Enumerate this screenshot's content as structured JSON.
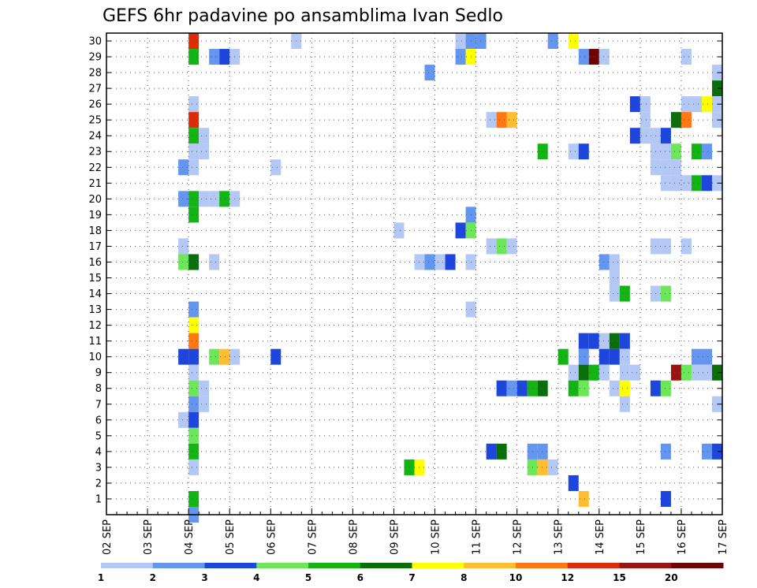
{
  "chart_data": {
    "type": "heatmap",
    "title": "GEFS 6hr padavine po ansamblima Ivan Sedlo",
    "x_tick_labels": [
      "02 SEP",
      "03 SEP",
      "04 SEP",
      "05 SEP",
      "06 SEP",
      "07 SEP",
      "08 SEP",
      "09 SEP",
      "10 SEP",
      "11 SEP",
      "12 SEP",
      "13 SEP",
      "14 SEP",
      "15 SEP",
      "16 SEP",
      "17 SEP"
    ],
    "y_tick_labels": [
      "1",
      "2",
      "3",
      "4",
      "5",
      "6",
      "7",
      "8",
      "9",
      "10",
      "11",
      "12",
      "13",
      "14",
      "15",
      "16",
      "17",
      "18",
      "19",
      "20",
      "21",
      "22",
      "23",
      "24",
      "25",
      "26",
      "27",
      "28",
      "29",
      "30"
    ],
    "xlim_days": [
      0,
      15
    ],
    "ylim_members": [
      0,
      30
    ],
    "grid": true,
    "colorbar": {
      "tick_labels": [
        "1",
        "2",
        "3",
        "4",
        "5",
        "6",
        "7",
        "8",
        "10",
        "12",
        "15",
        "20"
      ],
      "colors": [
        "#b4c8f5",
        "#6496ef",
        "#1e46dc",
        "#6ee65a",
        "#14b414",
        "#0a6e0a",
        "#ffff00",
        "#ffbe32",
        "#ff7814",
        "#dc2d0a",
        "#9b1414",
        "#6e0505"
      ]
    },
    "cells_note": "each cell: [x_step (6-hour step index, 0 = 02 SEP 00Z), member, color_class (0-11 index into colorbar.colors)]",
    "cells": [
      [
        8,
        30,
        9
      ],
      [
        36,
        30,
        1
      ],
      [
        43,
        30,
        1
      ],
      [
        45,
        30,
        6
      ],
      [
        18,
        30,
        0
      ],
      [
        34,
        30,
        0
      ],
      [
        35,
        30,
        1
      ],
      [
        8,
        29,
        4
      ],
      [
        10,
        29,
        1
      ],
      [
        11,
        29,
        2
      ],
      [
        12,
        29,
        0
      ],
      [
        34,
        29,
        1
      ],
      [
        35,
        29,
        6
      ],
      [
        46,
        29,
        1
      ],
      [
        47,
        29,
        11
      ],
      [
        48,
        29,
        0
      ],
      [
        56,
        29,
        0
      ],
      [
        31,
        28,
        1
      ],
      [
        59,
        28,
        0
      ],
      [
        59,
        27,
        5
      ],
      [
        60,
        27,
        1
      ],
      [
        8,
        26,
        0
      ],
      [
        51,
        26,
        2
      ],
      [
        52,
        26,
        0
      ],
      [
        56,
        26,
        0
      ],
      [
        57,
        26,
        0
      ],
      [
        58,
        26,
        6
      ],
      [
        59,
        26,
        0
      ],
      [
        8,
        25,
        9
      ],
      [
        37,
        25,
        0
      ],
      [
        38,
        25,
        8
      ],
      [
        39,
        25,
        7
      ],
      [
        52,
        25,
        0
      ],
      [
        55,
        25,
        5
      ],
      [
        56,
        25,
        8
      ],
      [
        59,
        25,
        0
      ],
      [
        8,
        24,
        4
      ],
      [
        9,
        24,
        0
      ],
      [
        51,
        24,
        2
      ],
      [
        52,
        24,
        0
      ],
      [
        53,
        24,
        0
      ],
      [
        54,
        24,
        2
      ],
      [
        8,
        23,
        0
      ],
      [
        9,
        23,
        0
      ],
      [
        42,
        23,
        4
      ],
      [
        45,
        23,
        0
      ],
      [
        46,
        23,
        2
      ],
      [
        53,
        23,
        0
      ],
      [
        54,
        23,
        0
      ],
      [
        55,
        23,
        3
      ],
      [
        57,
        23,
        4
      ],
      [
        58,
        23,
        1
      ],
      [
        7,
        22,
        1
      ],
      [
        8,
        22,
        0
      ],
      [
        16,
        22,
        0
      ],
      [
        53,
        22,
        0
      ],
      [
        54,
        22,
        0
      ],
      [
        55,
        22,
        0
      ],
      [
        54,
        21,
        0
      ],
      [
        55,
        21,
        0
      ],
      [
        56,
        21,
        0
      ],
      [
        57,
        21,
        4
      ],
      [
        58,
        21,
        2
      ],
      [
        59,
        21,
        0
      ],
      [
        7,
        20,
        1
      ],
      [
        8,
        20,
        4
      ],
      [
        9,
        20,
        0
      ],
      [
        10,
        20,
        0
      ],
      [
        11,
        20,
        4
      ],
      [
        12,
        20,
        0
      ],
      [
        8,
        19,
        4
      ],
      [
        35,
        19,
        1
      ],
      [
        28,
        18,
        0
      ],
      [
        34,
        18,
        2
      ],
      [
        35,
        18,
        3
      ],
      [
        7,
        17,
        0
      ],
      [
        37,
        17,
        0
      ],
      [
        38,
        17,
        3
      ],
      [
        39,
        17,
        0
      ],
      [
        53,
        17,
        0
      ],
      [
        54,
        17,
        0
      ],
      [
        56,
        17,
        0
      ],
      [
        7,
        16,
        3
      ],
      [
        8,
        16,
        5
      ],
      [
        10,
        16,
        0
      ],
      [
        30,
        16,
        0
      ],
      [
        31,
        16,
        1
      ],
      [
        32,
        16,
        0
      ],
      [
        33,
        16,
        2
      ],
      [
        35,
        16,
        0
      ],
      [
        48,
        16,
        1
      ],
      [
        49,
        16,
        0
      ],
      [
        49,
        15,
        0
      ],
      [
        49,
        14,
        0
      ],
      [
        50,
        14,
        4
      ],
      [
        53,
        14,
        0
      ],
      [
        54,
        14,
        3
      ],
      [
        8,
        13,
        1
      ],
      [
        35,
        13,
        0
      ],
      [
        8,
        12,
        6
      ],
      [
        60,
        12,
        0
      ],
      [
        8,
        11,
        8
      ],
      [
        46,
        11,
        2
      ],
      [
        47,
        11,
        2
      ],
      [
        48,
        11,
        0
      ],
      [
        49,
        11,
        5
      ],
      [
        50,
        11,
        2
      ],
      [
        7,
        10,
        2
      ],
      [
        8,
        10,
        2
      ],
      [
        10,
        10,
        3
      ],
      [
        11,
        10,
        7
      ],
      [
        12,
        10,
        0
      ],
      [
        16,
        10,
        2
      ],
      [
        44,
        10,
        4
      ],
      [
        46,
        10,
        1
      ],
      [
        48,
        10,
        2
      ],
      [
        49,
        10,
        2
      ],
      [
        50,
        10,
        0
      ],
      [
        57,
        10,
        1
      ],
      [
        58,
        10,
        1
      ],
      [
        8,
        9,
        0
      ],
      [
        45,
        9,
        0
      ],
      [
        46,
        9,
        5
      ],
      [
        47,
        9,
        4
      ],
      [
        48,
        9,
        0
      ],
      [
        50,
        9,
        0
      ],
      [
        51,
        9,
        0
      ],
      [
        55,
        9,
        10
      ],
      [
        56,
        9,
        3
      ],
      [
        57,
        9,
        0
      ],
      [
        58,
        9,
        0
      ],
      [
        59,
        9,
        5
      ],
      [
        60,
        9,
        2
      ],
      [
        8,
        8,
        3
      ],
      [
        9,
        8,
        0
      ],
      [
        38,
        8,
        2
      ],
      [
        39,
        8,
        1
      ],
      [
        40,
        8,
        2
      ],
      [
        41,
        8,
        4
      ],
      [
        42,
        8,
        5
      ],
      [
        45,
        8,
        4
      ],
      [
        46,
        8,
        3
      ],
      [
        49,
        8,
        0
      ],
      [
        50,
        8,
        6
      ],
      [
        53,
        8,
        2
      ],
      [
        54,
        8,
        3
      ],
      [
        60,
        8,
        7
      ],
      [
        8,
        7,
        1
      ],
      [
        9,
        7,
        0
      ],
      [
        50,
        7,
        0
      ],
      [
        59,
        7,
        0
      ],
      [
        60,
        7,
        1
      ],
      [
        7,
        6,
        0
      ],
      [
        8,
        6,
        2
      ],
      [
        8,
        5,
        3
      ],
      [
        8,
        4,
        4
      ],
      [
        37,
        4,
        2
      ],
      [
        38,
        4,
        5
      ],
      [
        41,
        4,
        1
      ],
      [
        42,
        4,
        1
      ],
      [
        54,
        4,
        1
      ],
      [
        58,
        4,
        1
      ],
      [
        59,
        4,
        2
      ],
      [
        60,
        4,
        1
      ],
      [
        8,
        3,
        0
      ],
      [
        29,
        3,
        4
      ],
      [
        30,
        3,
        6
      ],
      [
        41,
        3,
        3
      ],
      [
        42,
        3,
        7
      ],
      [
        43,
        3,
        0
      ],
      [
        45,
        2,
        2
      ],
      [
        8,
        1,
        4
      ],
      [
        46,
        1,
        7
      ],
      [
        54,
        1,
        2
      ],
      [
        8,
        0,
        1
      ]
    ]
  }
}
